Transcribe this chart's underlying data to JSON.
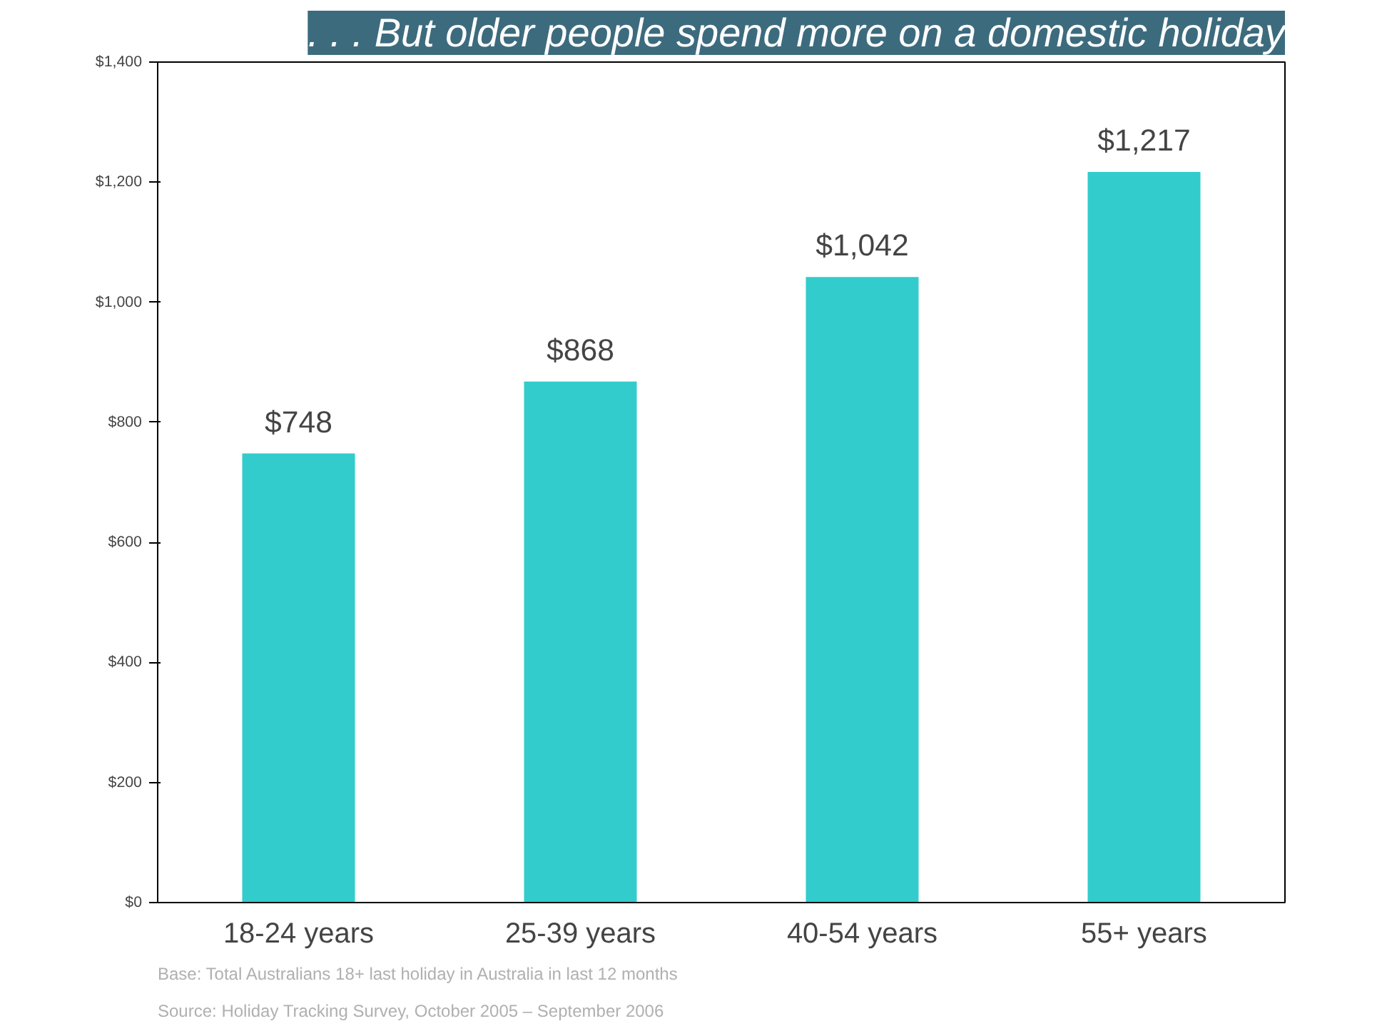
{
  "chart_data": {
    "type": "bar",
    "title": ". . . But older people spend more on a domestic holiday",
    "categories": [
      "18-24 years",
      "25-39 years",
      "40-54 years",
      "55+ years"
    ],
    "values": [
      748,
      868,
      1042,
      1217
    ],
    "color": "#33cccc",
    "value_labels": [
      "$748",
      "$868",
      "$1,042",
      "$1,217"
    ],
    "ylim": [
      0,
      1400
    ],
    "yticks": [
      {
        "value": 0,
        "label": "$0"
      },
      {
        "value": 200,
        "label": "$200"
      },
      {
        "value": 400,
        "label": "$400"
      },
      {
        "value": 600,
        "label": "$600"
      },
      {
        "value": 800,
        "label": "$800"
      },
      {
        "value": 1000,
        "label": "$1,000"
      },
      {
        "value": 1200,
        "label": "$1,200"
      },
      {
        "value": 1400,
        "label": "$1,400"
      }
    ],
    "grid": false,
    "annotations": [
      "Base: Total Australians 18+ last  holiday in Australia  in last 12 months",
      "Source: Holiday Tracking Survey, October 2005 – September 2006"
    ]
  }
}
